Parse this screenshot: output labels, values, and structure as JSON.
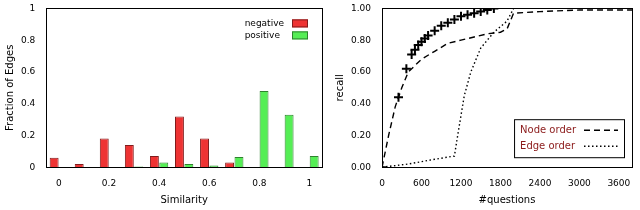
{
  "chart_data": [
    {
      "type": "bar",
      "xlabel": "Similarity",
      "ylabel": "Fraction of Edges",
      "x": [
        0,
        0.1,
        0.2,
        0.3,
        0.4,
        0.5,
        0.6,
        0.7,
        0.8,
        0.9,
        1
      ],
      "series": [
        {
          "name": "negative",
          "color": "#ee3333",
          "values": [
            0.06,
            0.02,
            0.18,
            0.14,
            0.07,
            0.32,
            0.18,
            0.03,
            0,
            0,
            0
          ]
        },
        {
          "name": "positive",
          "color": "#55ee55",
          "values": [
            0,
            0,
            0,
            0.005,
            0.03,
            0.02,
            0.01,
            0.065,
            0.48,
            0.33,
            0.07
          ]
        }
      ],
      "xlim": [
        -0.05,
        1.05
      ],
      "xticks": [
        0,
        0.2,
        0.4,
        0.6,
        0.8,
        1
      ],
      "ylim": [
        0,
        1
      ],
      "yticks": [
        0,
        0.2,
        0.4,
        0.6,
        0.8,
        1
      ],
      "grid": false,
      "legend": "upper right"
    },
    {
      "type": "line",
      "xlabel": "#questions",
      "ylabel": "recall",
      "series": [
        {
          "name": "Node order",
          "color": "#000000",
          "line_style": "dashed",
          "x": [
            0,
            100,
            200,
            300,
            400,
            600,
            800,
            1000,
            1200,
            1400,
            1600,
            1800,
            1900,
            2000,
            2400,
            3000,
            3600,
            3800
          ],
          "values": [
            0,
            0.2,
            0.38,
            0.5,
            0.6,
            0.68,
            0.73,
            0.78,
            0.8,
            0.82,
            0.84,
            0.85,
            0.87,
            0.97,
            0.98,
            0.99,
            0.99,
            0.99
          ]
        },
        {
          "name": "Edge order",
          "color": "#000000",
          "line_style": "dotted",
          "x": [
            0,
            400,
            800,
            1100,
            1150,
            1250,
            1350,
            1500,
            1700,
            1900,
            2000,
            3800
          ],
          "values": [
            0,
            0.02,
            0.05,
            0.07,
            0.2,
            0.45,
            0.6,
            0.75,
            0.85,
            0.92,
            1,
            1
          ]
        },
        {
          "color": "#000000",
          "marker": "plus",
          "x": [
            0,
            250,
            370,
            450,
            500,
            550,
            600,
            650,
            700,
            800,
            900,
            1000,
            1100,
            1200,
            1300,
            1400,
            1500,
            1600,
            1700
          ],
          "values": [
            0,
            0.44,
            0.62,
            0.71,
            0.74,
            0.77,
            0.79,
            0.81,
            0.83,
            0.86,
            0.89,
            0.91,
            0.93,
            0.95,
            0.96,
            0.97,
            0.98,
            0.99,
            1
          ]
        }
      ],
      "xlim": [
        0,
        3800
      ],
      "xticks": [
        0,
        600,
        1200,
        1800,
        2400,
        3000,
        3600
      ],
      "ylim": [
        0,
        1
      ],
      "yticks": [
        {
          "value": 0,
          "label": "0.00"
        },
        {
          "value": 0.2,
          "label": "0.20"
        },
        {
          "value": 0.4,
          "label": "0.40"
        },
        {
          "value": 0.6,
          "label": "0.60"
        },
        {
          "value": 0.8,
          "label": "0.80"
        },
        {
          "value": 1,
          "label": "1.00"
        }
      ],
      "grid": false,
      "legend": "lower right"
    }
  ]
}
